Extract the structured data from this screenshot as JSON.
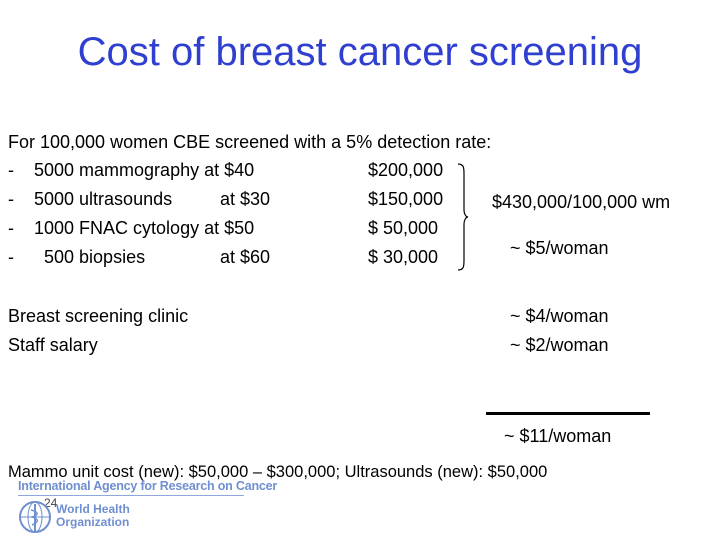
{
  "slide": {
    "title": "Cost of breast cancer screening",
    "intro": "For 100,000 women CBE screened with a 5% detection rate:",
    "items": [
      {
        "dash": "-",
        "item": "5000 mammography at $40",
        "price": "",
        "cost": "$200,000"
      },
      {
        "dash": "-",
        "item": "5000 ultrasounds",
        "price": "at $30",
        "cost": "$150,000"
      },
      {
        "dash": "-",
        "item": "1000 FNAC cytology at  $50",
        "price": "",
        "cost": "$  50,000"
      },
      {
        "dash": "-",
        "item": "  500 biopsies",
        "price": "at  $60",
        "cost": "$  30,000"
      }
    ],
    "total": "$430,000/100,000 wm",
    "per_woman": "~ $5/woman",
    "clinic_label": "Breast screening clinic",
    "clinic_value": "~ $4/woman",
    "staff_label": "Staff salary",
    "staff_value": "~ $2/woman",
    "grand_total": "~ $11/woman",
    "footnote": "Mammo unit cost (new): $50,000 – $300,000; Ultrasounds (new): $50,000"
  },
  "footer": {
    "organization": "International Agency for Research on Cancer",
    "page_number": "24",
    "who_name": "World Health Organization",
    "brand_color": "#6f8fd0",
    "logo_icon": "who-emblem-icon"
  },
  "colors": {
    "title": "#2f3fcf"
  }
}
